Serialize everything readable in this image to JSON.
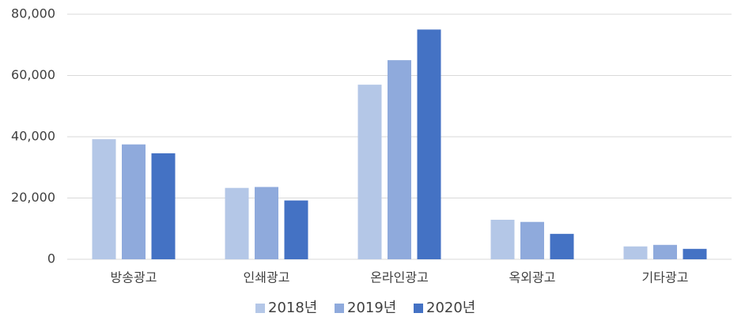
{
  "chart_data": {
    "type": "bar",
    "categories": [
      "방송광고",
      "인쇄광고",
      "온라인광고",
      "옥외광고",
      "기타광고"
    ],
    "series": [
      {
        "name": "2018년",
        "color": "#b4c7e7",
        "values": [
          39200,
          23300,
          57000,
          12900,
          4200
        ]
      },
      {
        "name": "2019년",
        "color": "#8faadc",
        "values": [
          37500,
          23600,
          65000,
          12200,
          4700
        ]
      },
      {
        "name": "2020년",
        "color": "#4472c4",
        "values": [
          34600,
          19200,
          75000,
          8300,
          3400
        ]
      }
    ],
    "ylim": [
      0,
      80000
    ],
    "yticks": [
      0,
      {
        "value": 20000,
        "label": "20,000"
      },
      {
        "value": 40000,
        "label": "40,000"
      },
      {
        "value": 60000,
        "label": "60,000"
      },
      {
        "value": 80000,
        "label": "80,000"
      }
    ],
    "grid": true,
    "legend": "bottom"
  }
}
